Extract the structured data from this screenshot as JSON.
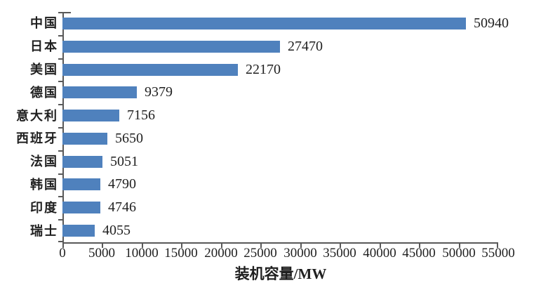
{
  "chart_data": {
    "type": "bar",
    "orientation": "horizontal",
    "title": "",
    "categories": [
      "中国",
      "日本",
      "美国",
      "德国",
      "意大利",
      "西班牙",
      "法国",
      "韩国",
      "印度",
      "瑞士"
    ],
    "values": [
      50940,
      27470,
      22170,
      9379,
      7156,
      5650,
      5051,
      4790,
      4746,
      4055
    ],
    "value_labels": [
      "50940",
      "27470",
      "22170",
      "9379",
      "7156",
      "5650",
      "5051",
      "4790",
      "4746",
      "4055"
    ],
    "xlabel": "装机容量/MW",
    "ylabel": "",
    "xlim": [
      0,
      55000
    ],
    "x_ticks": [
      0,
      5000,
      10000,
      15000,
      20000,
      25000,
      30000,
      35000,
      40000,
      45000,
      50000,
      55000
    ],
    "x_tick_labels": [
      "0",
      "5000",
      "10000",
      "15000",
      "20000",
      "25000",
      "30000",
      "35000",
      "40000",
      "45000",
      "50000",
      "55000"
    ],
    "grid": false,
    "legend": false,
    "bar_color": "#4f81bd",
    "axis_color": "#595959",
    "text_color": "#1f1f1f"
  }
}
